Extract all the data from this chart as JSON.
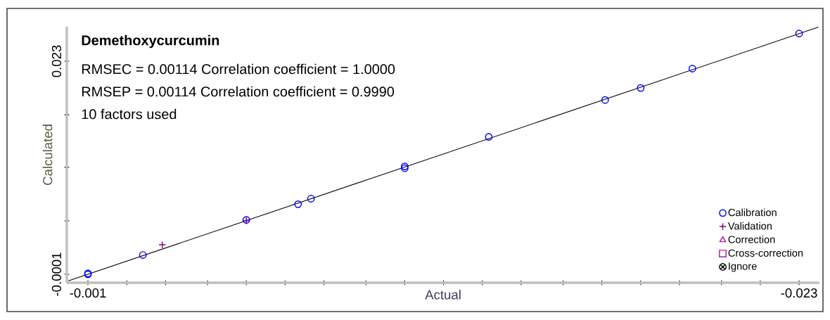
{
  "chart_data": {
    "type": "scatter",
    "title": "Demethoxycurcumin",
    "annotations": [
      "RMSEC = 0.00114  Correlation coefficient = 1.0000",
      "RMSEP = 0.00114  Correlation coefficient = 0.9990",
      "10 factors used"
    ],
    "xlabel": "Actual",
    "ylabel": "Calculated",
    "xlim": [
      -0.000347,
      -0.02363
    ],
    "ylim": [
      -0.00101,
      0.02674
    ],
    "xticks": [
      {
        "value": -0.001,
        "label": "-0.001"
      },
      {
        "value": -0.0022,
        "label": null
      },
      {
        "value": -0.0034,
        "label": null
      },
      {
        "value": -0.0047,
        "label": null
      },
      {
        "value": -0.0059,
        "label": null
      },
      {
        "value": -0.0071,
        "label": null
      },
      {
        "value": -0.0083,
        "label": null
      },
      {
        "value": -0.0096,
        "label": null
      },
      {
        "value": -0.0108,
        "label": null
      },
      {
        "value": -0.012,
        "label": null
      },
      {
        "value": -0.0132,
        "label": null
      },
      {
        "value": -0.0144,
        "label": null
      },
      {
        "value": -0.0157,
        "label": null
      },
      {
        "value": -0.0169,
        "label": null
      },
      {
        "value": -0.0181,
        "label": null
      },
      {
        "value": -0.0193,
        "label": null
      },
      {
        "value": -0.0206,
        "label": null
      },
      {
        "value": -0.0218,
        "label": null
      },
      {
        "value": -0.023,
        "label": "-0.023"
      }
    ],
    "yticks": [
      {
        "value": -0.0001,
        "label": "-0.0001"
      },
      {
        "value": 0.0057,
        "label": null
      },
      {
        "value": 0.0115,
        "label": null
      },
      {
        "value": 0.0172,
        "label": null
      },
      {
        "value": 0.023,
        "label": "0.023"
      }
    ],
    "legend": "bottom right",
    "series": [
      {
        "type": "line",
        "color": "#000000",
        "marker": "none",
        "x": [
          -0.0004,
          -0.0236
        ],
        "values": [
          -0.0008,
          0.0267
        ]
      },
      {
        "name": "Calibration",
        "color": "#0000ff",
        "marker": "circle",
        "x": [
          -0.001,
          -0.001,
          -0.0027,
          -0.0059,
          -0.0075,
          -0.0079,
          -0.0108,
          -0.0108,
          -0.0134,
          -0.017,
          -0.0181,
          -0.0197,
          -0.023
        ],
        "values": [
          -0.0001,
          0.0,
          0.002,
          0.0058,
          0.0075,
          0.0081,
          0.0116,
          0.0114,
          0.0148,
          0.0188,
          0.0201,
          0.0222,
          0.026
        ]
      },
      {
        "name": "Validation",
        "color": "#800080",
        "marker": "cross",
        "x": [
          -0.0033,
          -0.0059
        ],
        "values": [
          0.0031,
          0.0057
        ]
      },
      {
        "name": "Correction",
        "color": "#a020a0",
        "marker": "triangle"
      },
      {
        "name": "Cross-correction",
        "color": "#a020a0",
        "marker": "square"
      },
      {
        "name": "Ignore",
        "color": "#000000",
        "marker": "star"
      }
    ]
  }
}
